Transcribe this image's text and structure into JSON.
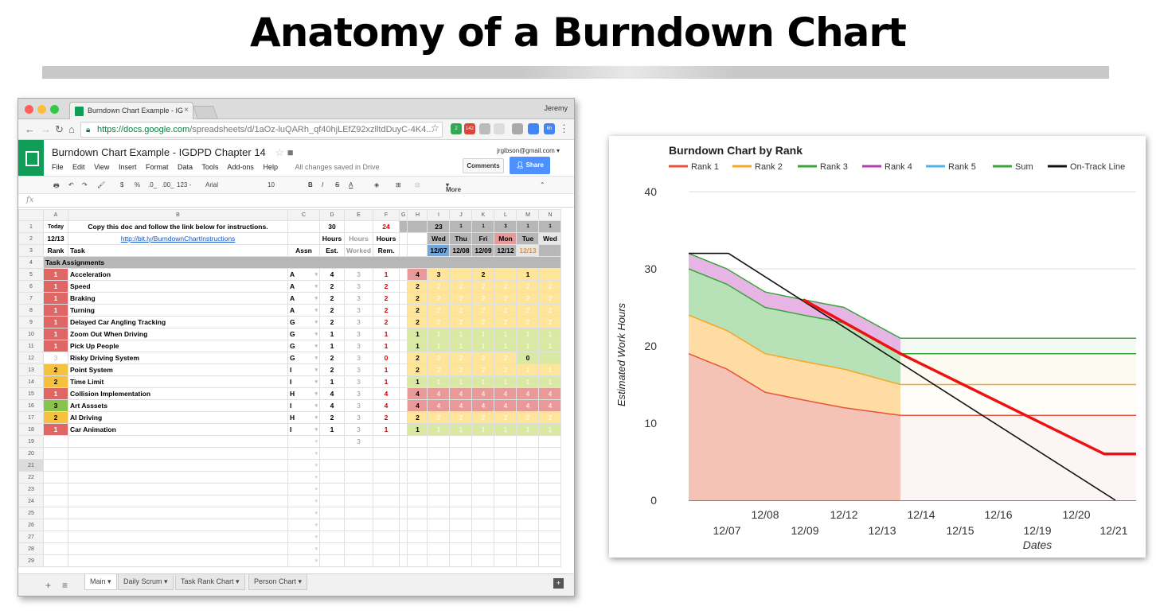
{
  "slide": {
    "title": "Anatomy of a Burndown Chart"
  },
  "browser": {
    "tab_title": "Burndown Chart Example - IG",
    "tab_close": "×",
    "user": "Jeremy",
    "url_host": "https://docs.google.com",
    "url_path": "/spreadsheets/d/1aOz-luQARh_qf40hjLEfZ92xzlltdDuyC-4K4...",
    "ext_badges": [
      "2",
      "142",
      "6h"
    ]
  },
  "sheets": {
    "doc_title": "Burndown Chart Example - IGDPD Chapter 14",
    "menus": [
      "File",
      "Edit",
      "View",
      "Insert",
      "Format",
      "Data",
      "Tools",
      "Add-ons",
      "Help"
    ],
    "save_status": "All changes saved in Drive",
    "account": "jrgibson@gmail.com",
    "comments_label": "Comments",
    "share_label": "Share",
    "toolbar": {
      "currency": "$",
      "percent": "%",
      "dec_less": ".0_",
      "dec_more": ".00_",
      "format": "123 -",
      "font": "Arial",
      "size": "10",
      "bold": "B",
      "italic": "I",
      "strike": "S",
      "textcolor": "A",
      "more": "More"
    },
    "fx": "fx",
    "columns": [
      "A",
      "B",
      "C",
      "D",
      "E",
      "F",
      "G",
      "H",
      "I",
      "J",
      "K",
      "L",
      "M",
      "N"
    ],
    "header_rows": [
      [
        "Today",
        "Copy this doc and follow the link below for instructions.",
        "",
        "30",
        "",
        "24",
        "",
        "",
        "23",
        "1",
        "1",
        "3",
        "1",
        "1"
      ],
      [
        "12/13",
        "http://bit.ly/BurndownChartInstructions",
        "",
        "Hours",
        "Hours",
        "Hours",
        "",
        "",
        "Wed",
        "Thu",
        "Fri",
        "Mon",
        "Tue",
        "Wed"
      ],
      [
        "Rank",
        "Task",
        "Assn",
        "Est.",
        "Worked",
        "Rem.",
        "",
        "",
        "12/07",
        "12/08",
        "12/09",
        "12/12",
        "12/13",
        "12/14"
      ]
    ],
    "section_label": "Task Assignments",
    "tasks": [
      {
        "rank": "1",
        "task": "Acceleration",
        "assn": "A",
        "est": "4",
        "worked": "3",
        "rem": "1",
        "days": [
          "4",
          "3",
          "",
          "2",
          "",
          "1",
          ""
        ]
      },
      {
        "rank": "1",
        "task": "Speed",
        "assn": "A",
        "est": "2",
        "worked": "3",
        "rem": "2",
        "days": [
          "2",
          "2",
          "2",
          "2",
          "2",
          "2",
          "2"
        ]
      },
      {
        "rank": "1",
        "task": "Braking",
        "assn": "A",
        "est": "2",
        "worked": "3",
        "rem": "2",
        "days": [
          "2",
          "2",
          "2",
          "2",
          "2",
          "2",
          "2"
        ]
      },
      {
        "rank": "1",
        "task": "Turning",
        "assn": "A",
        "est": "2",
        "worked": "3",
        "rem": "2",
        "days": [
          "2",
          "2",
          "2",
          "2",
          "2",
          "2",
          "2"
        ]
      },
      {
        "rank": "1",
        "task": "Delayed Car Angling Tracking",
        "assn": "G",
        "est": "2",
        "worked": "3",
        "rem": "2",
        "days": [
          "2",
          "2",
          "2",
          "2",
          "2",
          "2",
          "2"
        ]
      },
      {
        "rank": "1",
        "task": "Zoom Out When Driving",
        "assn": "G",
        "est": "1",
        "worked": "3",
        "rem": "1",
        "days": [
          "1",
          "1",
          "1",
          "1",
          "1",
          "1",
          "1"
        ]
      },
      {
        "rank": "1",
        "task": "Pick Up People",
        "assn": "G",
        "est": "1",
        "worked": "3",
        "rem": "1",
        "days": [
          "1",
          "1",
          "1",
          "1",
          "1",
          "1",
          "1"
        ]
      },
      {
        "rank": "3",
        "task": "Risky Driving System",
        "assn": "G",
        "est": "2",
        "worked": "3",
        "rem": "0",
        "days": [
          "2",
          "2",
          "2",
          "2",
          "2",
          "0",
          ""
        ]
      },
      {
        "rank": "2",
        "task": "Point System",
        "assn": "I",
        "est": "2",
        "worked": "3",
        "rem": "1",
        "days": [
          "2",
          "2",
          "2",
          "2",
          "2",
          "1",
          "1"
        ]
      },
      {
        "rank": "2",
        "task": "Time Limit",
        "assn": "I",
        "est": "1",
        "worked": "3",
        "rem": "1",
        "days": [
          "1",
          "1",
          "1",
          "1",
          "1",
          "1",
          "1"
        ]
      },
      {
        "rank": "1",
        "task": "Collision Implementation",
        "assn": "H",
        "est": "4",
        "worked": "3",
        "rem": "4",
        "days": [
          "4",
          "4",
          "4",
          "4",
          "4",
          "4",
          "4"
        ]
      },
      {
        "rank": "3",
        "task": "Art Asssets",
        "assn": "I",
        "est": "4",
        "worked": "3",
        "rem": "4",
        "days": [
          "4",
          "4",
          "4",
          "4",
          "4",
          "4",
          "4"
        ]
      },
      {
        "rank": "2",
        "task": "AI Driving",
        "assn": "H",
        "est": "2",
        "worked": "3",
        "rem": "2",
        "days": [
          "2",
          "2",
          "2",
          "2",
          "2",
          "2",
          "2"
        ]
      },
      {
        "rank": "1",
        "task": "Car Animation",
        "assn": "I",
        "est": "1",
        "worked": "3",
        "rem": "1",
        "days": [
          "1",
          "1",
          "1",
          "1",
          "1",
          "1",
          "1"
        ]
      }
    ],
    "row19_worked": "3",
    "sheet_tabs": [
      "Main",
      "Daily Scrum",
      "Task Rank Chart",
      "Person Chart"
    ]
  },
  "chart_data": {
    "type": "area",
    "title": "Burndown Chart by Rank",
    "ylabel": "Estimated Work Hours",
    "xlabel": "Dates",
    "ylim": [
      0,
      40
    ],
    "yticks": [
      "0",
      "10",
      "20",
      "30",
      "40"
    ],
    "xticks_top": [
      "12/08",
      "12/12",
      "12/14",
      "12/16",
      "12/20"
    ],
    "xticks_bottom": [
      "12/07",
      "12/09",
      "12/13",
      "12/15",
      "12/19",
      "12/21"
    ],
    "legend_position": "top",
    "series": [
      {
        "name": "Rank 1",
        "color": "#e8523a"
      },
      {
        "name": "Rank 2",
        "color": "#f5a623"
      },
      {
        "name": "Rank 3",
        "color": "#3aa33a"
      },
      {
        "name": "Rank 4",
        "color": "#b03cb0"
      },
      {
        "name": "Rank 5",
        "color": "#4fb3e8"
      },
      {
        "name": "Sum",
        "color": "#3aa33a"
      },
      {
        "name": "On-Track Line",
        "color": "#111111"
      }
    ]
  }
}
